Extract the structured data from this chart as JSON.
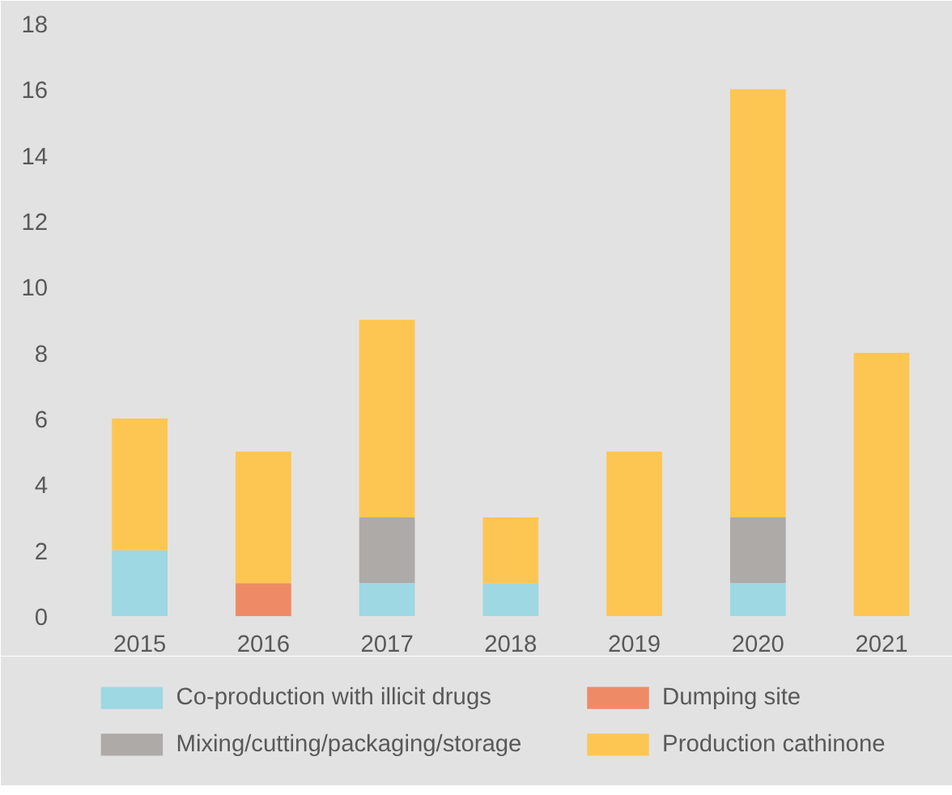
{
  "chart_data": {
    "type": "bar",
    "stacked": true,
    "categories": [
      "2015",
      "2016",
      "2017",
      "2018",
      "2019",
      "2020",
      "2021"
    ],
    "series": [
      {
        "name": "Co-production with illicit drugs",
        "color": "#9dd8e3",
        "values": [
          2,
          null,
          1,
          1,
          null,
          1,
          null
        ]
      },
      {
        "name": "Dumping site",
        "color": "#ef8a67",
        "values": [
          null,
          1,
          null,
          null,
          null,
          null,
          null
        ]
      },
      {
        "name": "Mixing/cutting/packaging/storage",
        "color": "#aeaaa8",
        "values": [
          null,
          null,
          2,
          null,
          null,
          2,
          null
        ]
      },
      {
        "name": "Production cathinone",
        "color": "#fdc653",
        "values": [
          4,
          4,
          6,
          2,
          5,
          13,
          8
        ]
      }
    ],
    "ylim": [
      0,
      18
    ],
    "yticks": [
      0,
      2,
      4,
      6,
      8,
      10,
      12,
      14,
      16,
      18
    ],
    "legend": "bottom"
  }
}
